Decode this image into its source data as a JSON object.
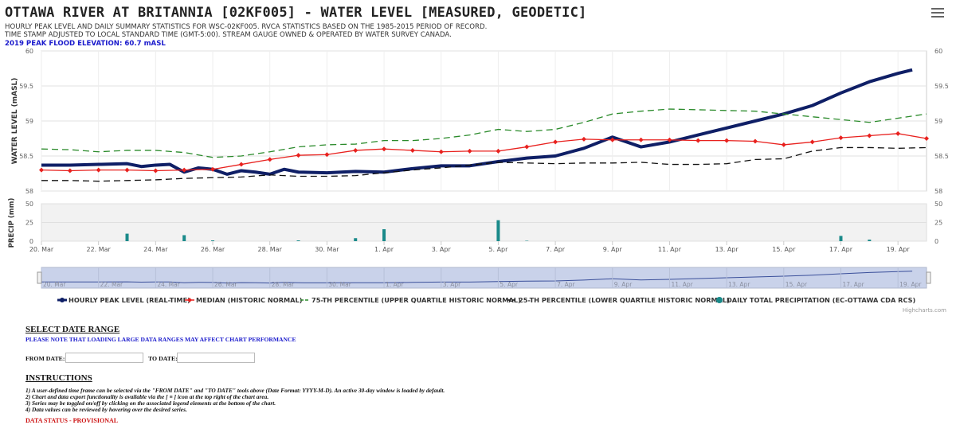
{
  "header": {
    "title": "OTTAWA RIVER AT BRITANNIA [02KF005] - WATER LEVEL [MEASURED, GEODETIC]",
    "subtitle_line1": "HOURLY PEAK LEVEL AND DAILY SUMMARY STATISTICS FOR WSC-02KF005. RVCA STATISTICS BASED ON THE 1985-2015 PERIOD OF RECORD.",
    "subtitle_line2": "TIME STAMP ADJUSTED TO LOCAL STANDARD TIME (GMT-5:00). STREAM GAUGE OWNED & OPERATED BY WATER SURVEY CANADA.",
    "flood_note": "2019 PEAK FLOOD ELEVATION: 60.7 mASL"
  },
  "chart_data": {
    "type": "line",
    "title": "OTTAWA RIVER AT BRITANNIA [02KF005] - WATER LEVEL [MEASURED, GEODETIC]",
    "ylabel": "WATER LEVEL (mASL)",
    "ylim": [
      58,
      60
    ],
    "y_ticks": [
      "58",
      "58.5",
      "59",
      "59.5",
      "60"
    ],
    "precip_ylabel": "PRECIP (mm)",
    "precip_ylim": [
      0,
      50
    ],
    "precip_ticks": [
      "0",
      "25",
      "50"
    ],
    "x_tick_labels": [
      "20. Mar",
      "22. Mar",
      "24. Mar",
      "26. Mar",
      "28. Mar",
      "30. Mar",
      "1. Apr",
      "3. Apr",
      "5. Apr",
      "7. Apr",
      "9. Apr",
      "11. Apr",
      "13. Apr",
      "15. Apr",
      "17. Apr",
      "19. Apr"
    ],
    "x_start": "2019-03-20",
    "x_end": "2019-04-20",
    "series": [
      {
        "name": "HOURLY PEAK LEVEL (REAL-TIME)",
        "color": "#0f1f66",
        "x": [
          "2019-03-20",
          "2019-03-21",
          "2019-03-22",
          "2019-03-23",
          "2019-03-23T12:00",
          "2019-03-24",
          "2019-03-24T12:00",
          "2019-03-25",
          "2019-03-25T12:00",
          "2019-03-26",
          "2019-03-26T12:00",
          "2019-03-27",
          "2019-03-27T12:00",
          "2019-03-28",
          "2019-03-28T12:00",
          "2019-03-29",
          "2019-03-30",
          "2019-03-31",
          "2019-04-01",
          "2019-04-02",
          "2019-04-03",
          "2019-04-04",
          "2019-04-05",
          "2019-04-06",
          "2019-04-07",
          "2019-04-08",
          "2019-04-09",
          "2019-04-10",
          "2019-04-11",
          "2019-04-12",
          "2019-04-13",
          "2019-04-14",
          "2019-04-15",
          "2019-04-16",
          "2019-04-17",
          "2019-04-18",
          "2019-04-19",
          "2019-04-19T12:00"
        ],
        "values": [
          58.37,
          58.37,
          58.38,
          58.39,
          58.35,
          58.37,
          58.38,
          58.27,
          58.33,
          58.31,
          58.24,
          58.29,
          58.27,
          58.24,
          58.31,
          58.27,
          58.26,
          58.28,
          58.27,
          58.32,
          58.36,
          58.36,
          58.42,
          58.47,
          58.5,
          58.61,
          58.77,
          58.63,
          58.7,
          58.8,
          58.9,
          59.0,
          59.1,
          59.22,
          59.4,
          59.56,
          59.68,
          59.73
        ]
      },
      {
        "name": "MEDIAN (HISTORIC NORMAL)",
        "color": "#e8211e",
        "x": [
          "2019-03-20",
          "2019-03-21",
          "2019-03-22",
          "2019-03-23",
          "2019-03-24",
          "2019-03-25",
          "2019-03-26",
          "2019-03-27",
          "2019-03-28",
          "2019-03-29",
          "2019-03-30",
          "2019-03-31",
          "2019-04-01",
          "2019-04-02",
          "2019-04-03",
          "2019-04-04",
          "2019-04-05",
          "2019-04-06",
          "2019-04-07",
          "2019-04-08",
          "2019-04-09",
          "2019-04-10",
          "2019-04-11",
          "2019-04-12",
          "2019-04-13",
          "2019-04-14",
          "2019-04-15",
          "2019-04-16",
          "2019-04-17",
          "2019-04-18",
          "2019-04-19",
          "2019-04-20"
        ],
        "values": [
          58.3,
          58.29,
          58.3,
          58.3,
          58.29,
          58.3,
          58.31,
          58.38,
          58.45,
          58.51,
          58.52,
          58.58,
          58.6,
          58.58,
          58.56,
          58.57,
          58.57,
          58.63,
          58.7,
          58.74,
          58.73,
          58.73,
          58.73,
          58.72,
          58.72,
          58.71,
          58.66,
          58.7,
          58.76,
          58.79,
          58.82,
          58.75
        ]
      },
      {
        "name": "75-TH PERCENTILE (UPPER QUARTILE HISTORIC NORMAL)",
        "color": "#2a8a2a",
        "x": [
          "2019-03-20",
          "2019-03-21",
          "2019-03-22",
          "2019-03-23",
          "2019-03-24",
          "2019-03-25",
          "2019-03-26",
          "2019-03-27",
          "2019-03-28",
          "2019-03-29",
          "2019-03-30",
          "2019-03-31",
          "2019-04-01",
          "2019-04-02",
          "2019-04-03",
          "2019-04-04",
          "2019-04-05",
          "2019-04-06",
          "2019-04-07",
          "2019-04-08",
          "2019-04-09",
          "2019-04-10",
          "2019-04-11",
          "2019-04-12",
          "2019-04-13",
          "2019-04-14",
          "2019-04-15",
          "2019-04-16",
          "2019-04-17",
          "2019-04-18",
          "2019-04-19",
          "2019-04-20"
        ],
        "values": [
          58.6,
          58.59,
          58.56,
          58.58,
          58.58,
          58.55,
          58.48,
          58.5,
          58.56,
          58.63,
          58.66,
          58.67,
          58.72,
          58.72,
          58.75,
          58.8,
          58.88,
          58.85,
          58.88,
          58.98,
          59.1,
          59.14,
          59.17,
          59.16,
          59.15,
          59.14,
          59.1,
          59.06,
          59.02,
          58.98,
          59.04,
          59.1
        ]
      },
      {
        "name": "25-TH PERCENTILE (LOWER QUARTILE HISTORIC NORMAL)",
        "color": "#111111",
        "x": [
          "2019-03-20",
          "2019-03-21",
          "2019-03-22",
          "2019-03-23",
          "2019-03-24",
          "2019-03-25",
          "2019-03-26",
          "2019-03-27",
          "2019-03-28",
          "2019-03-29",
          "2019-03-30",
          "2019-03-31",
          "2019-04-01",
          "2019-04-02",
          "2019-04-03",
          "2019-04-04",
          "2019-04-05",
          "2019-04-06",
          "2019-04-07",
          "2019-04-08",
          "2019-04-09",
          "2019-04-10",
          "2019-04-11",
          "2019-04-12",
          "2019-04-13",
          "2019-04-14",
          "2019-04-15",
          "2019-04-16",
          "2019-04-17",
          "2019-04-18",
          "2019-04-19",
          "2019-04-20"
        ],
        "values": [
          58.15,
          58.15,
          58.14,
          58.15,
          58.16,
          58.18,
          58.19,
          58.2,
          58.23,
          58.21,
          58.21,
          58.22,
          58.26,
          58.3,
          58.33,
          58.37,
          58.41,
          58.4,
          58.39,
          58.4,
          58.4,
          58.41,
          58.38,
          58.38,
          58.39,
          58.45,
          58.46,
          58.57,
          58.62,
          58.62,
          58.61,
          58.62
        ]
      }
    ],
    "precip": {
      "name": "DAILY TOTAL PRECIPITATION (EC-OTTAWA CDA RCS)",
      "color": "#1a8a8a",
      "x": [
        "2019-03-23",
        "2019-03-25",
        "2019-03-26",
        "2019-03-29",
        "2019-03-31",
        "2019-04-01",
        "2019-04-05",
        "2019-04-06",
        "2019-04-17",
        "2019-04-18"
      ],
      "values": [
        10,
        8,
        1,
        1,
        4,
        16,
        28,
        0.5,
        7,
        2
      ]
    },
    "legend_position": "bottom",
    "grid": true
  },
  "navigator": {
    "labels": [
      "20. Mar",
      "22. Mar",
      "24. Mar",
      "26. Mar",
      "28. Mar",
      "30. Mar",
      "1. Apr",
      "3. Apr",
      "5. Apr",
      "7. Apr",
      "9. Apr",
      "11. Apr",
      "13. Apr",
      "15. Apr",
      "17. Apr",
      "19. Apr"
    ]
  },
  "credits": "Highcharts.com",
  "form": {
    "section_title": "SELECT DATE RANGE",
    "note": "PLEASE NOTE THAT LOADING LARGE DATA RANGES MAY AFFECT CHART PERFORMANCE",
    "from_label": "FROM DATE:",
    "to_label": "TO DATE:",
    "from_value": "",
    "to_value": ""
  },
  "instructions": {
    "title": "INSTRUCTIONS",
    "items": [
      "1) A user-defined time frame can be selected via the \"FROM DATE\" and \"TO DATE\" tools above (Date Format: YYYY-M-D). An active 30-day window is loaded by default.",
      "2) Chart and data export functionality is available via the [ ≡ ] icon at the top right of the chart area.",
      "3) Series may be toggled on/off by clicking on the associated legend elements at the bottom of the chart.",
      "4) Data values can be reviewed by hovering over the desired series."
    ]
  },
  "status": "DATA STATUS - PROVISIONAL"
}
